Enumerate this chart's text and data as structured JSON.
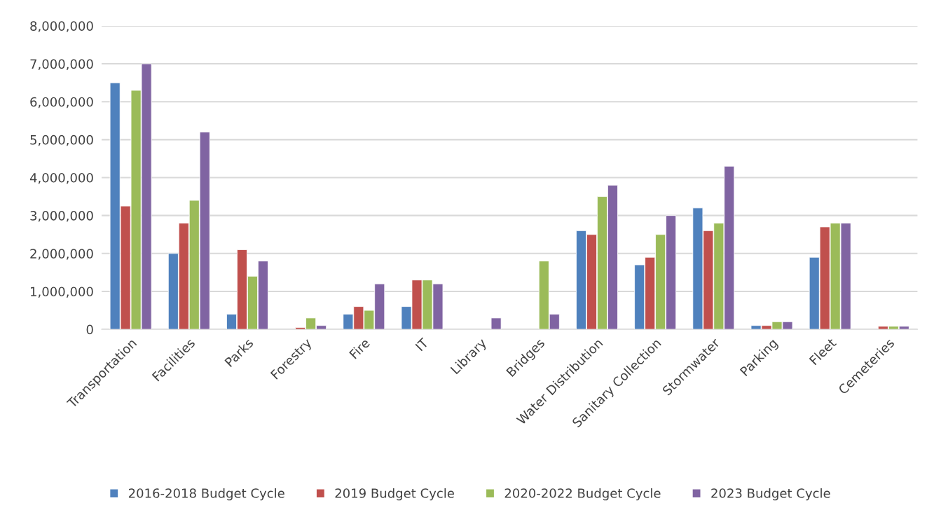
{
  "chart_data": {
    "type": "bar",
    "categories": [
      "Transportation",
      "Facilities",
      "Parks",
      "Forestry",
      "Fire",
      "IT",
      "Library",
      "Bridges",
      "Water Distribution",
      "Sanitary Collection",
      "Stormwater",
      "Parking",
      "Fleet",
      "Cemeteries"
    ],
    "series": [
      {
        "name": "2016-2018 Budget Cycle",
        "color": "#4f81bd",
        "values": [
          6500000,
          2000000,
          400000,
          null,
          400000,
          600000,
          null,
          null,
          2600000,
          1700000,
          3200000,
          100000,
          1900000,
          null
        ]
      },
      {
        "name": "2019 Budget Cycle",
        "color": "#c0504d",
        "values": [
          3250000,
          2800000,
          2100000,
          50000,
          600000,
          1300000,
          null,
          null,
          2500000,
          1900000,
          2600000,
          100000,
          2700000,
          80000
        ]
      },
      {
        "name": "2020-2022 Budget Cycle",
        "color": "#9bbb59",
        "values": [
          6300000,
          3400000,
          1400000,
          300000,
          500000,
          1300000,
          null,
          1800000,
          3500000,
          2500000,
          2800000,
          200000,
          2800000,
          80000
        ]
      },
      {
        "name": "2023 Budget Cycle",
        "color": "#8064a2",
        "values": [
          7000000,
          5200000,
          1800000,
          100000,
          1200000,
          1200000,
          300000,
          400000,
          3800000,
          3000000,
          4300000,
          200000,
          2800000,
          80000
        ]
      }
    ],
    "ylim": [
      0,
      8000000
    ],
    "yticks": [
      0,
      {
        "value": 1000000,
        "label": "1,000,000"
      },
      {
        "value": 2000000,
        "label": "2,000,000"
      },
      {
        "value": 3000000,
        "label": "3,000,000"
      },
      {
        "value": 4000000,
        "label": "4,000,000"
      },
      {
        "value": 5000000,
        "label": "5,000,000"
      },
      {
        "value": 6000000,
        "label": "6,000,000"
      },
      {
        "value": 7000000,
        "label": "7,000,000"
      },
      {
        "value": 8000000,
        "label": "8,000,000"
      }
    ],
    "grid": "y",
    "legend": "bottom"
  }
}
